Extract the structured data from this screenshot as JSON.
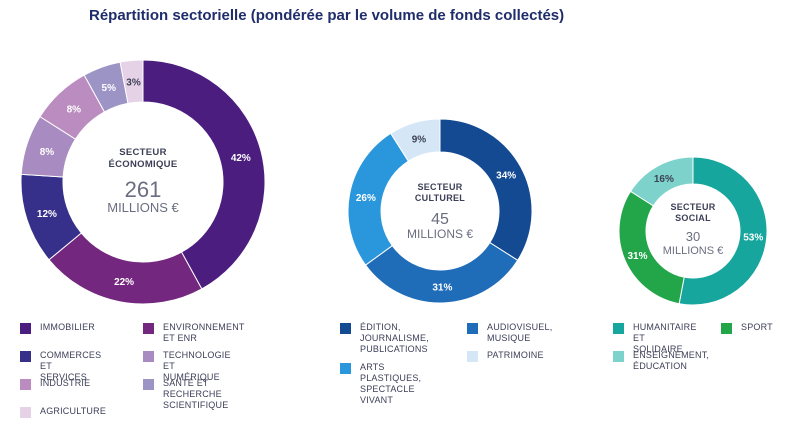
{
  "title": "Répartition sectorielle (pondérée par le volume de fonds collectés)",
  "chart_data": [
    {
      "type": "pie",
      "center_label": "SECTEUR\nÉCONOMIQUE",
      "total_value": "261",
      "total_unit": "MILLIONS €",
      "series": [
        {
          "name": "IMMOBILIER",
          "value": 42,
          "label": "42%",
          "color": "#4a1d7f"
        },
        {
          "name": "ENVIRONNEMENT\nET ENR",
          "value": 22,
          "label": "22%",
          "color": "#74277f"
        },
        {
          "name": "COMMERCES\nET SERVICES",
          "value": 12,
          "label": "12%",
          "color": "#36308a"
        },
        {
          "name": "TECHNOLOGIE\nET NUMÉRIQUE",
          "value": 8,
          "label": "8%",
          "color": "#a88bc0"
        },
        {
          "name": "INDUSTRIE",
          "value": 8,
          "label": "8%",
          "color": "#bb8cc0"
        },
        {
          "name": "SANTÉ ET RECHERCHE\nSCIENTIFIQUE",
          "value": 5,
          "label": "5%",
          "color": "#9d94c6"
        },
        {
          "name": "AGRICULTURE",
          "value": 3,
          "label": "3%",
          "color": "#e5d2e6"
        }
      ]
    },
    {
      "type": "pie",
      "center_label": "SECTEUR\nCULTUREL",
      "total_value": "45",
      "total_unit": "MILLIONS €",
      "series": [
        {
          "name": "ÉDITION,\nJOURNALISME,\nPUBLICATIONS",
          "value": 34,
          "label": "34%",
          "color": "#144a92"
        },
        {
          "name": "AUDIOVISUEL,\nMUSIQUE",
          "value": 31,
          "label": "31%",
          "color": "#1f6cb9"
        },
        {
          "name": "ARTS PLASTIQUES,\nSPECTACLE VIVANT",
          "value": 26,
          "label": "26%",
          "color": "#2a97dc"
        },
        {
          "name": "PATRIMOINE",
          "value": 9,
          "label": "9%",
          "color": "#d5e7f7"
        }
      ]
    },
    {
      "type": "pie",
      "center_label": "SECTEUR\nSOCIAL",
      "total_value": "30",
      "total_unit": "MILLIONS €",
      "series": [
        {
          "name": "HUMANITAIRE\nET SOLIDAIRE",
          "value": 53,
          "label": "53%",
          "color": "#16a69d"
        },
        {
          "name": "SPORT",
          "value": 31,
          "label": "31%",
          "color": "#23a54a"
        },
        {
          "name": "ENSEIGNEMENT,\nÉDUCATION",
          "value": 16,
          "label": "16%",
          "color": "#7dd3cc"
        }
      ]
    }
  ]
}
